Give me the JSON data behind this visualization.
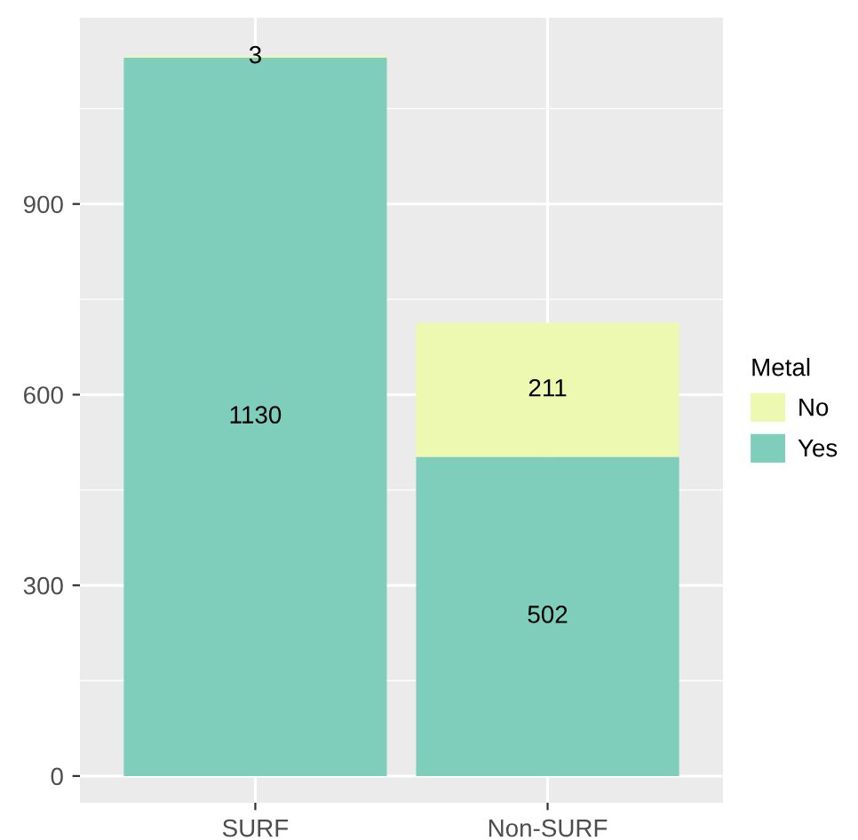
{
  "chart_data": {
    "type": "bar",
    "stacked": true,
    "categories": [
      "SURF",
      "Non-SURF"
    ],
    "series": [
      {
        "name": "Yes",
        "color": "#7fcdbb",
        "values": [
          1130,
          502
        ]
      },
      {
        "name": "No",
        "color": "#edf8b1",
        "values": [
          3,
          211
        ]
      }
    ],
    "legend_title": "Metal",
    "legend": "right",
    "data_labels": true,
    "grid": true,
    "ylim": [
      -42,
      1193
    ],
    "yticks": [
      0,
      300,
      600,
      900
    ]
  }
}
